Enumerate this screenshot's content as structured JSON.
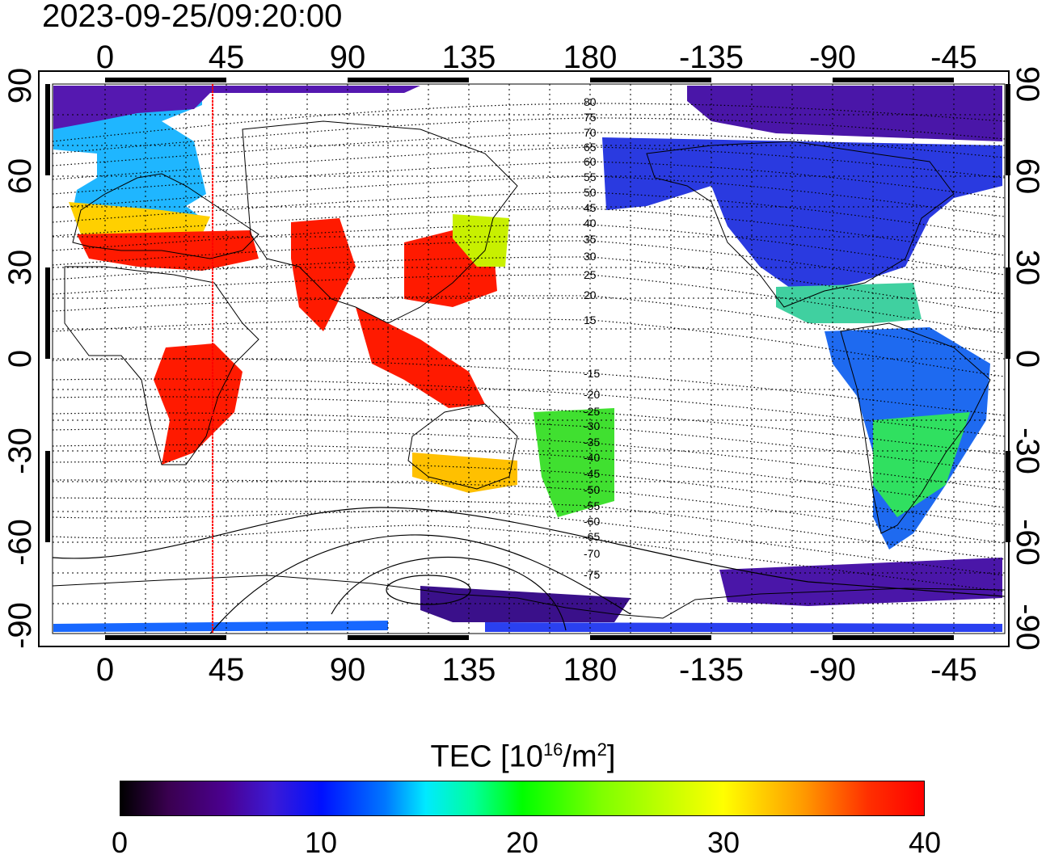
{
  "title": "2023-09-25/09:20:00",
  "map": {
    "lon_top_labels": [
      "0",
      "45",
      "90",
      "135",
      "180",
      "-135",
      "-90",
      "-45"
    ],
    "lon_bottom_labels": [
      "0",
      "45",
      "90",
      "135",
      "180",
      "-135",
      "-90",
      "-45"
    ],
    "lat_left_labels": [
      "90",
      "60",
      "30",
      "0",
      "-30",
      "-60",
      "-90"
    ],
    "lat_right_labels": [
      "90",
      "60",
      "30",
      "0",
      "-30",
      "-60",
      "-90"
    ],
    "mlat_labels": [
      "80",
      "75",
      "70",
      "65",
      "60",
      "55",
      "50",
      "45",
      "40",
      "35",
      "30",
      "25",
      "20",
      "15",
      "-15",
      "-20",
      "-25",
      "-30",
      "-35",
      "-40",
      "-45",
      "-50",
      "-55",
      "-60",
      "-65",
      "-70",
      "-75"
    ],
    "terminator_longitude": 40,
    "terminator_color": "#ff0000"
  },
  "colorbar": {
    "title": "TEC  [10",
    "title_exp": "16",
    "title_unit": "/m",
    "title_exp2": "2",
    "title_end": "]",
    "tick_labels": [
      "0",
      "10",
      "20",
      "30",
      "40"
    ],
    "min": 0,
    "max": 40,
    "colors": [
      "#000000",
      "#4b0090",
      "#0010ff",
      "#00eaff",
      "#00ff00",
      "#ffff00",
      "#ff9a00",
      "#ff0000"
    ]
  }
}
